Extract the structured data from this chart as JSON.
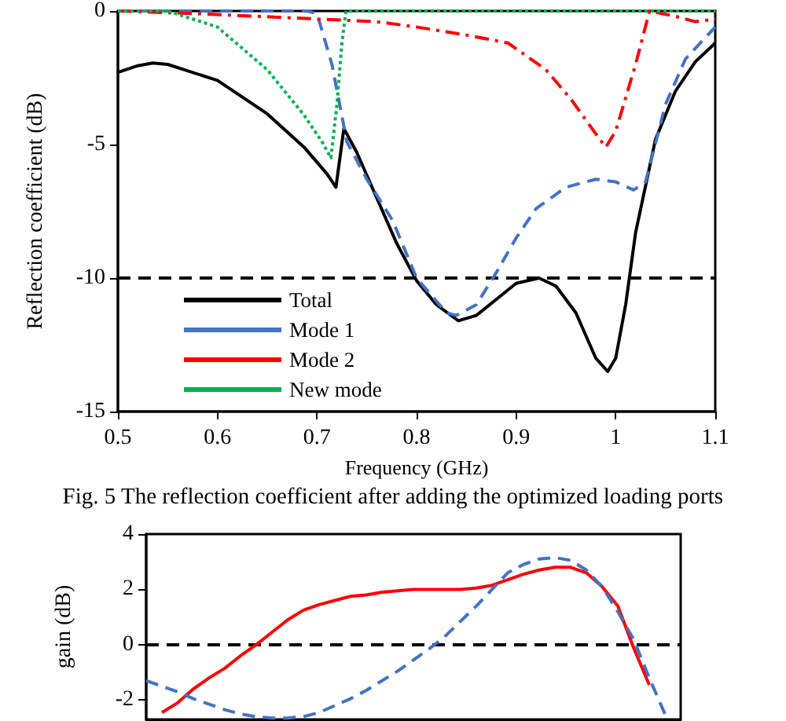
{
  "chart_data": [
    {
      "type": "line",
      "xlabel": "Frequency (GHz)",
      "ylabel": "Reflection coefficient (dB)",
      "annotations": [
        "Fig. 5 The reflection coefficient after adding the optimized loading ports"
      ],
      "xlim": [
        0.5,
        1.1
      ],
      "xticks": [
        0.5,
        0.6,
        0.7,
        0.8,
        0.9,
        1,
        1.1
      ],
      "ylim": [
        -15,
        0
      ],
      "yticks": [
        -15,
        -10,
        -5,
        0
      ],
      "grid": false,
      "legend": "bottom left",
      "marker": "none",
      "ref_lines": [
        {
          "axis": "y",
          "value": -10,
          "label": null,
          "color": "#000000",
          "line_style": "dashed"
        }
      ],
      "series": [
        {
          "name": "Total",
          "color": "#000000",
          "line_style": "solid",
          "x": [
            0.5,
            0.52,
            0.535,
            0.55,
            0.6,
            0.65,
            0.687,
            0.71,
            0.719,
            0.727,
            0.74,
            0.76,
            0.78,
            0.8,
            0.82,
            0.842,
            0.86,
            0.88,
            0.9,
            0.923,
            0.94,
            0.96,
            0.98,
            0.992,
            1.0,
            1.01,
            1.02,
            1.04,
            1.06,
            1.08,
            1.1
          ],
          "values": [
            -2.3,
            -2.05,
            -1.95,
            -2.0,
            -2.6,
            -3.85,
            -5.1,
            -6.1,
            -6.6,
            -4.4,
            -5.3,
            -7.0,
            -8.7,
            -10.1,
            -11.0,
            -11.6,
            -11.4,
            -10.8,
            -10.2,
            -10.0,
            -10.3,
            -11.3,
            -13.0,
            -13.5,
            -13.0,
            -11.0,
            -8.3,
            -4.8,
            -3.0,
            -1.9,
            -1.2
          ]
        },
        {
          "name": "Mode 1",
          "color": "#4472c4",
          "line_style": "dashed",
          "x": [
            0.5,
            0.6,
            0.69,
            0.7,
            0.715,
            0.73,
            0.75,
            0.776,
            0.8,
            0.83,
            0.84,
            0.86,
            0.88,
            0.9,
            0.92,
            0.95,
            0.98,
            1.0,
            1.018,
            1.03,
            1.05,
            1.07,
            1.1
          ],
          "values": [
            0,
            0,
            0,
            -0.1,
            -2.0,
            -4.9,
            -6.3,
            -7.85,
            -10.0,
            -11.3,
            -11.4,
            -11.0,
            -9.8,
            -8.5,
            -7.4,
            -6.6,
            -6.3,
            -6.4,
            -6.7,
            -6.4,
            -3.5,
            -1.8,
            -0.6
          ]
        },
        {
          "name": "Mode 2",
          "color": "#ff0000",
          "line_style": "dashdot",
          "x": [
            0.5,
            0.58,
            0.7,
            0.76,
            0.8,
            0.85,
            0.892,
            0.93,
            0.955,
            0.98,
            0.99,
            1.0,
            1.02,
            1.034,
            1.06,
            1.08,
            1.1
          ],
          "values": [
            0,
            -0.1,
            -0.3,
            -0.4,
            -0.6,
            -0.9,
            -1.2,
            -2.2,
            -3.3,
            -4.6,
            -5.1,
            -4.5,
            -2.0,
            0,
            -0.2,
            -0.4,
            -0.3
          ]
        },
        {
          "name": "New mode",
          "color": "#00b050",
          "line_style": "dotted",
          "x": [
            0.5,
            0.55,
            0.6,
            0.65,
            0.687,
            0.705,
            0.714,
            0.72,
            0.725,
            0.729,
            0.8,
            0.9,
            1.0,
            1.1
          ],
          "values": [
            0,
            0,
            -0.6,
            -2.2,
            -3.9,
            -4.9,
            -5.5,
            -3.5,
            -1.2,
            0,
            0,
            0,
            0,
            0
          ]
        }
      ]
    },
    {
      "type": "line",
      "ylabel": "gain (dB)",
      "tick_labels": "y",
      "categories": [
        null,
        null,
        null,
        null,
        null,
        null,
        null,
        null,
        null,
        null,
        null,
        null,
        null,
        null,
        null,
        null,
        null,
        null,
        null,
        null,
        null,
        null,
        null,
        null,
        null,
        null,
        null,
        null,
        null,
        null,
        null,
        null,
        null,
        null,
        null
      ],
      "ylim": [
        -2.7,
        4
      ],
      "yticks": [
        -2,
        0,
        2,
        4
      ],
      "grid": false,
      "legend": false,
      "marker": "none",
      "ref_lines": [
        {
          "axis": "y",
          "value": 0,
          "label": null,
          "color": "#000000",
          "line_style": "dashed"
        }
      ],
      "series": [
        {
          "color": "#ff0000",
          "line_style": "solid",
          "values": [
            null,
            -2.45,
            -2.1,
            -1.6,
            -1.2,
            -0.85,
            -0.4,
            0,
            0.45,
            0.9,
            1.25,
            1.45,
            1.6,
            1.75,
            1.8,
            1.9,
            1.95,
            2.0,
            2.0,
            2.0,
            2.0,
            2.05,
            2.15,
            2.35,
            2.55,
            2.7,
            2.8,
            2.8,
            2.6,
            2.1,
            1.4,
            -0.1,
            -1.45,
            null,
            null
          ]
        },
        {
          "color": "#4472c4",
          "line_style": "dashed",
          "values": [
            -1.3,
            -1.5,
            -1.7,
            -1.95,
            -2.15,
            -2.35,
            -2.5,
            -2.6,
            -2.65,
            -2.65,
            -2.6,
            -2.45,
            -2.2,
            -1.95,
            -1.65,
            -1.3,
            -0.95,
            -0.55,
            -0.15,
            0.3,
            0.85,
            1.4,
            2.0,
            2.6,
            2.9,
            3.1,
            3.15,
            3.05,
            2.7,
            2.1,
            1.2,
            0.2,
            -1.2,
            -2.5,
            null
          ]
        }
      ]
    }
  ]
}
